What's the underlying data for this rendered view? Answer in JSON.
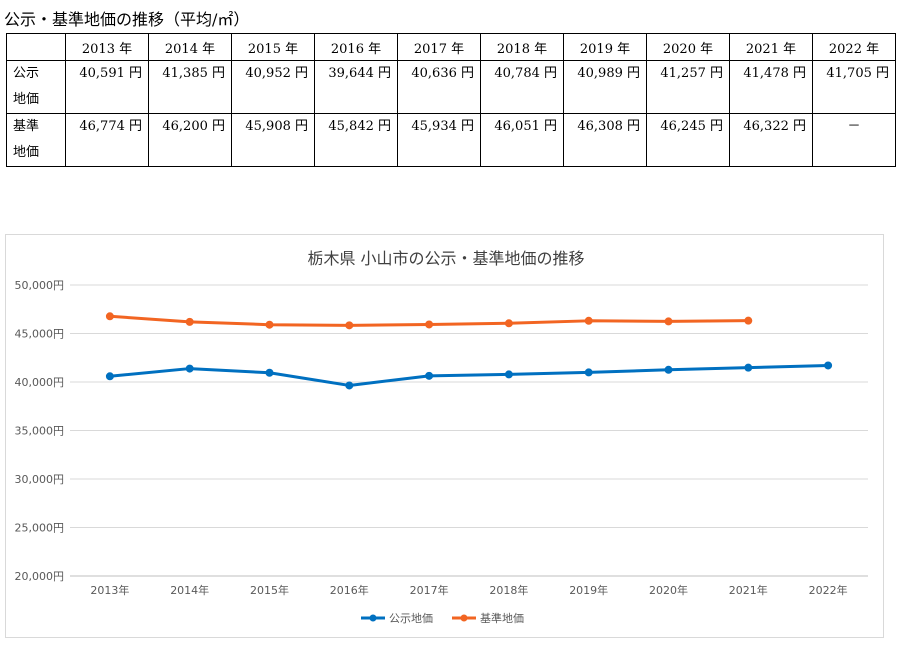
{
  "page_title": "公示・基準地価の推移（平均/㎡）",
  "table": {
    "years": [
      "2013 年",
      "2014 年",
      "2015 年",
      "2016 年",
      "2017 年",
      "2018 年",
      "2019 年",
      "2020 年",
      "2021 年",
      "2022 年"
    ],
    "rows": [
      {
        "label_line1": "公示",
        "label_line2": "地価",
        "values": [
          "40,591 円",
          "41,385 円",
          "40,952 円",
          "39,644 円",
          "40,636 円",
          "40,784 円",
          "40,989 円",
          "41,257 円",
          "41,478 円",
          "41,705 円"
        ]
      },
      {
        "label_line1": "基準",
        "label_line2": "地価",
        "values": [
          "46,774 円",
          "46,200 円",
          "45,908 円",
          "45,842 円",
          "45,934 円",
          "46,051 円",
          "46,308 円",
          "46,245 円",
          "46,322 円",
          "－"
        ]
      }
    ]
  },
  "chart_data": {
    "type": "line",
    "title": "栃木県 小山市の公示・基準地価の推移",
    "categories": [
      "2013年",
      "2014年",
      "2015年",
      "2016年",
      "2017年",
      "2018年",
      "2019年",
      "2020年",
      "2021年",
      "2022年"
    ],
    "ylim": [
      20000,
      50000
    ],
    "yticks": [
      "20,000円",
      "25,000円",
      "30,000円",
      "35,000円",
      "40,000円",
      "45,000円",
      "50,000円"
    ],
    "ytick_values": [
      20000,
      25000,
      30000,
      35000,
      40000,
      45000,
      50000
    ],
    "grid": true,
    "legend": "bottom",
    "series": [
      {
        "name": "公示地価",
        "color": "#0070C0",
        "values": [
          40591,
          41385,
          40952,
          39644,
          40636,
          40784,
          40989,
          41257,
          41478,
          41705
        ]
      },
      {
        "name": "基準地価",
        "color": "#F26522",
        "values": [
          46774,
          46200,
          45908,
          45842,
          45934,
          46051,
          46308,
          46245,
          46322,
          null
        ]
      }
    ]
  }
}
